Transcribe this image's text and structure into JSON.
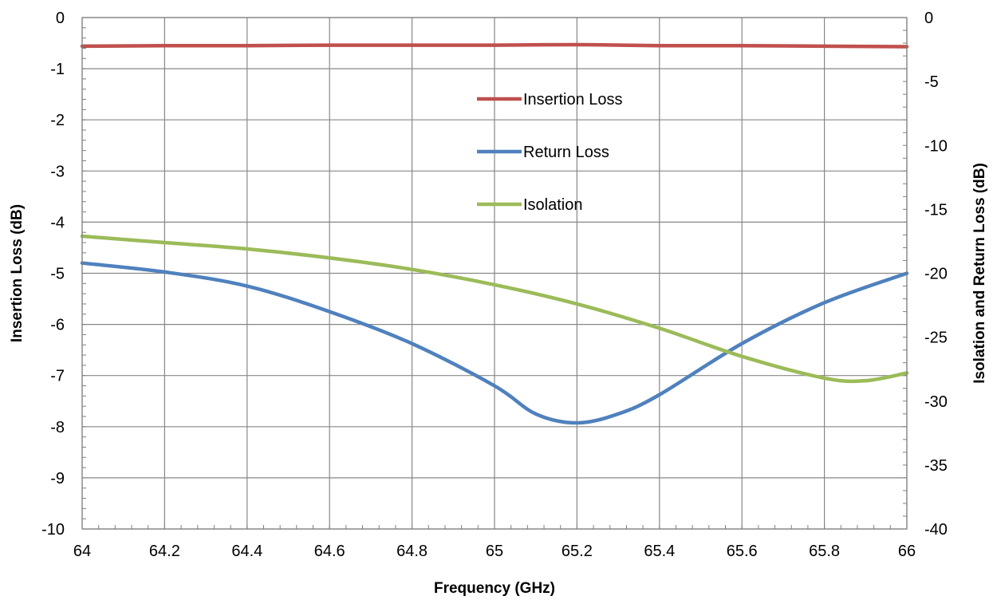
{
  "chart_data": {
    "type": "line",
    "title": "",
    "xlabel": "Frequency (GHz)",
    "ylabel_left": "Insertion Loss (dB)",
    "ylabel_right": "Isolation and Return Loss (dB)",
    "xlim": [
      64,
      66
    ],
    "ylim_left": [
      -10,
      0
    ],
    "ylim_right": [
      -40,
      0
    ],
    "grid": true,
    "legend_placement": "top-center (inside plot)",
    "x_ticks": [
      "64",
      "64.2",
      "64.4",
      "64.6",
      "64.8",
      "65",
      "65.2",
      "65.4",
      "65.6",
      "65.8",
      "66"
    ],
    "y_left_ticks": [
      "0",
      "-1",
      "-2",
      "-3",
      "-4",
      "-5",
      "-6",
      "-7",
      "-8",
      "-9",
      "-10"
    ],
    "y_right_ticks": [
      "0",
      "-5",
      "-10",
      "-15",
      "-20",
      "-25",
      "-30",
      "-35",
      "-40"
    ],
    "series": [
      {
        "name": "Insertion Loss",
        "axis": "left",
        "color": "#c0504d",
        "x": [
          64,
          64.2,
          64.4,
          64.6,
          64.8,
          65,
          65.2,
          65.4,
          65.6,
          65.8,
          66
        ],
        "y": [
          -0.56,
          -0.55,
          -0.55,
          -0.54,
          -0.54,
          -0.54,
          -0.53,
          -0.55,
          -0.55,
          -0.56,
          -0.57
        ]
      },
      {
        "name": "Return Loss",
        "axis": "right",
        "color": "#4f81bd",
        "x": [
          64,
          64.2,
          64.4,
          64.6,
          64.8,
          65,
          65.1,
          65.2,
          65.3,
          65.4,
          65.6,
          65.8,
          66
        ],
        "y": [
          -19.2,
          -19.9,
          -21.0,
          -23.0,
          -25.5,
          -28.8,
          -31.0,
          -31.7,
          -31.0,
          -29.5,
          -25.5,
          -22.3,
          -20.0
        ]
      },
      {
        "name": "Isolation",
        "axis": "right",
        "color": "#9bbb59",
        "x": [
          64,
          64.2,
          64.4,
          64.6,
          64.8,
          65,
          65.2,
          65.4,
          65.6,
          65.8,
          65.9,
          66
        ],
        "y": [
          -17.1,
          -17.6,
          -18.1,
          -18.8,
          -19.7,
          -20.9,
          -22.4,
          -24.3,
          -26.5,
          -28.2,
          -28.4,
          -27.8
        ]
      }
    ]
  }
}
